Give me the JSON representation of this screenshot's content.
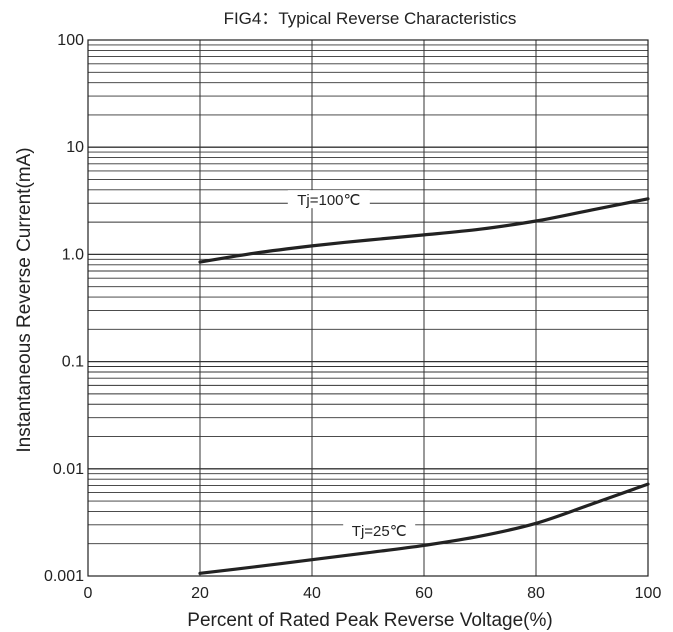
{
  "chart_data": {
    "type": "line",
    "title": "FIG4：Typical Reverse Characteristics",
    "xlabel": "Percent of Rated Peak Reverse Voltage(%)",
    "ylabel": "Instantaneous Reverse Current(mA)",
    "xlim": [
      0,
      100
    ],
    "ylim": [
      0.001,
      100
    ],
    "yscale": "log",
    "grid": true,
    "x_ticks": [
      "0",
      "20",
      "40",
      "60",
      "80",
      "100"
    ],
    "x_tick_values": [
      0,
      20,
      40,
      60,
      80,
      100
    ],
    "y_ticks": [
      "0.001",
      "0.01",
      "0.1",
      "1.0",
      "10",
      "100"
    ],
    "y_tick_values": [
      0.001,
      0.01,
      0.1,
      1,
      10,
      100
    ],
    "series": [
      {
        "name": "Tj=100℃",
        "x": [
          20,
          30,
          40,
          50,
          60,
          70,
          80,
          90,
          100
        ],
        "y": [
          0.85,
          1.03,
          1.2,
          1.36,
          1.52,
          1.72,
          2.05,
          2.6,
          3.3
        ]
      },
      {
        "name": "Tj=25℃",
        "x": [
          20,
          30,
          40,
          50,
          60,
          70,
          80,
          90,
          100
        ],
        "y": [
          0.00106,
          0.00122,
          0.00142,
          0.00165,
          0.00193,
          0.00235,
          0.0031,
          0.0047,
          0.0072
        ]
      }
    ]
  }
}
